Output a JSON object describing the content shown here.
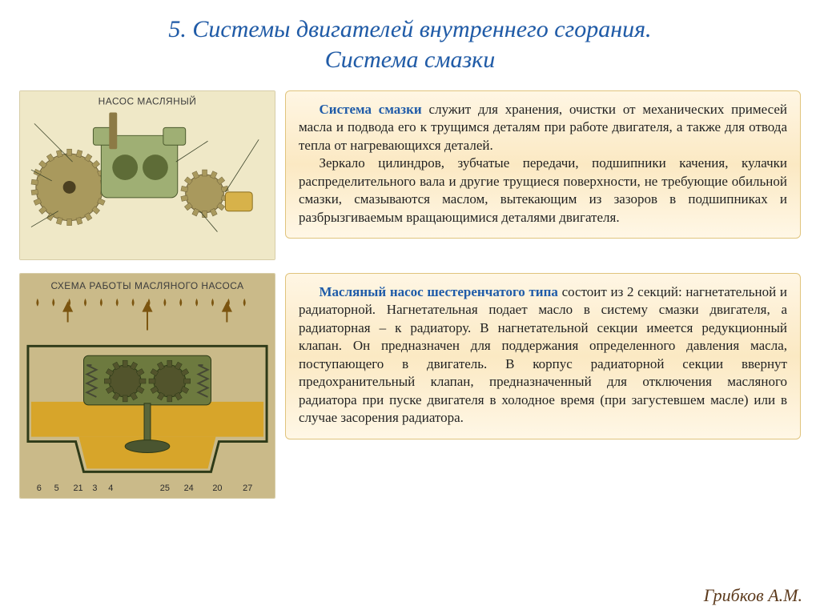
{
  "title_line1": "5. Системы двигателей внутреннего сгорания.",
  "title_line2": "Система смазки",
  "author": "Грибков А.М.",
  "diagram1": {
    "header": "НАСОС МАСЛЯНЫЙ",
    "bg": "#efe8c7",
    "gear_color": "#a9995d",
    "gear_edge": "#6f623a",
    "case_color": "#9faf74",
    "case_edge": "#4c5a2d",
    "shaft_color": "#8c7a45",
    "callout_color": "#3a4228"
  },
  "diagram2": {
    "header": "СХЕМА РАБОТЫ МАСЛЯНОГО НАСОСА",
    "bg": "#caba89",
    "oil_color": "#d7a52a",
    "oil_dark": "#7b5510",
    "case_color": "#6d7a3f",
    "case_edge": "#2e3a18",
    "gear_color": "#52542c",
    "spring_color": "#454734",
    "nums": [
      "6",
      "5",
      "21",
      "3",
      "4",
      "25",
      "24",
      "20",
      "27"
    ],
    "num_x": [
      24,
      46,
      73,
      94,
      114,
      182,
      212,
      248,
      286
    ]
  },
  "panel1": {
    "lead": "Система смазки",
    "rest1": " служит для хранения, очистки от механических примесей масла и подвода его к трущимся деталям при работе двигателя, а также для отвода тепла от нагревающихся деталей.",
    "para2": "Зеркало цилиндров, зубчатые передачи, подшипники качения, кулачки распределительного вала и другие трущиеся поверхности, не требующие обильной смазки, смазываются маслом, вытекающим из зазоров в подшипниках и разбрызгиваемым вращающимися деталями двигателя."
  },
  "panel2": {
    "lead": "Масляный насос шестеренчатого типа",
    "rest": " состоит из 2 секций: нагнетательной и радиаторной. Нагнетательная подает масло в систему смазки двигателя, а радиаторная – к радиатору. В нагнетательной секции имеется редукционный клапан. Он предназначен для поддержания определенного давления масла, поступающего в двигатель. В корпус радиаторной секции ввернут предохранительный клапан, предназначенный для отключения масляного радиатора при пуске двигателя в холодное время (при загустевшем масле) или в случае засорения радиатора."
  },
  "colors": {
    "title": "#1f5ba8",
    "panel_border": "#e0c47d",
    "panel_grad_top": "#fff6e4",
    "panel_grad_mid": "#fbe9c3",
    "panel_grad_bot": "#fff7e6",
    "author": "#5c3a1c"
  },
  "fontsize": {
    "title": 30,
    "panel": 17,
    "author": 22
  }
}
